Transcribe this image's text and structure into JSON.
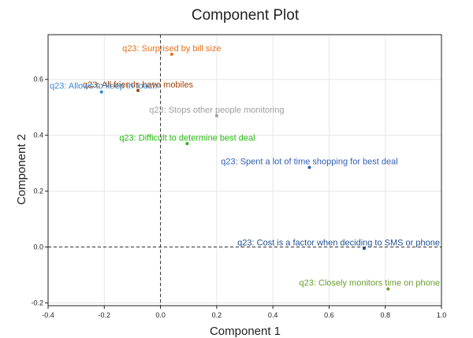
{
  "chart_data": {
    "type": "scatter",
    "title": "Component Plot",
    "xlabel": "Component 1",
    "ylabel": "Component 2",
    "xlim": [
      -0.4,
      1.0
    ],
    "ylim": [
      -0.21,
      0.76
    ],
    "xticks": [
      "-0.4",
      "-0.2",
      "0.0",
      "0.2",
      "0.4",
      "0.6",
      "0.8",
      "1.0"
    ],
    "yticks": [
      "-0.2",
      "0.0",
      "0.2",
      "0.4",
      "0.6"
    ],
    "grid": true,
    "reference_lines": {
      "x": 0.0,
      "y": 0.0
    },
    "points": [
      {
        "label": "q23: Surprised by bill size",
        "x": 0.04,
        "y": 0.69,
        "color": "#e8701a"
      },
      {
        "label": "q23: All friends have mobiles",
        "x": -0.08,
        "y": 0.56,
        "color": "#a0430a"
      },
      {
        "label": "q23: Allows to keep in touch",
        "x": -0.21,
        "y": 0.555,
        "color": "#3a87d0"
      },
      {
        "label": "q23: Stops other people monitoring",
        "x": 0.2,
        "y": 0.47,
        "color": "#9e9e9e"
      },
      {
        "label": "q23: Difficult to determine best deal",
        "x": 0.095,
        "y": 0.37,
        "color": "#22b80c"
      },
      {
        "label": "q23: Spent a lot of time shopping for best deal",
        "x": 0.53,
        "y": 0.285,
        "color": "#2f5fb5"
      },
      {
        "label": "q23: Cost is a factor when deciding to SMS or phone",
        "x": 0.725,
        "y": -0.005,
        "color": "#1d4f91"
      },
      {
        "label": "q23: Closely monitors time on phone",
        "x": 0.81,
        "y": -0.15,
        "color": "#6a9c2e"
      }
    ]
  }
}
